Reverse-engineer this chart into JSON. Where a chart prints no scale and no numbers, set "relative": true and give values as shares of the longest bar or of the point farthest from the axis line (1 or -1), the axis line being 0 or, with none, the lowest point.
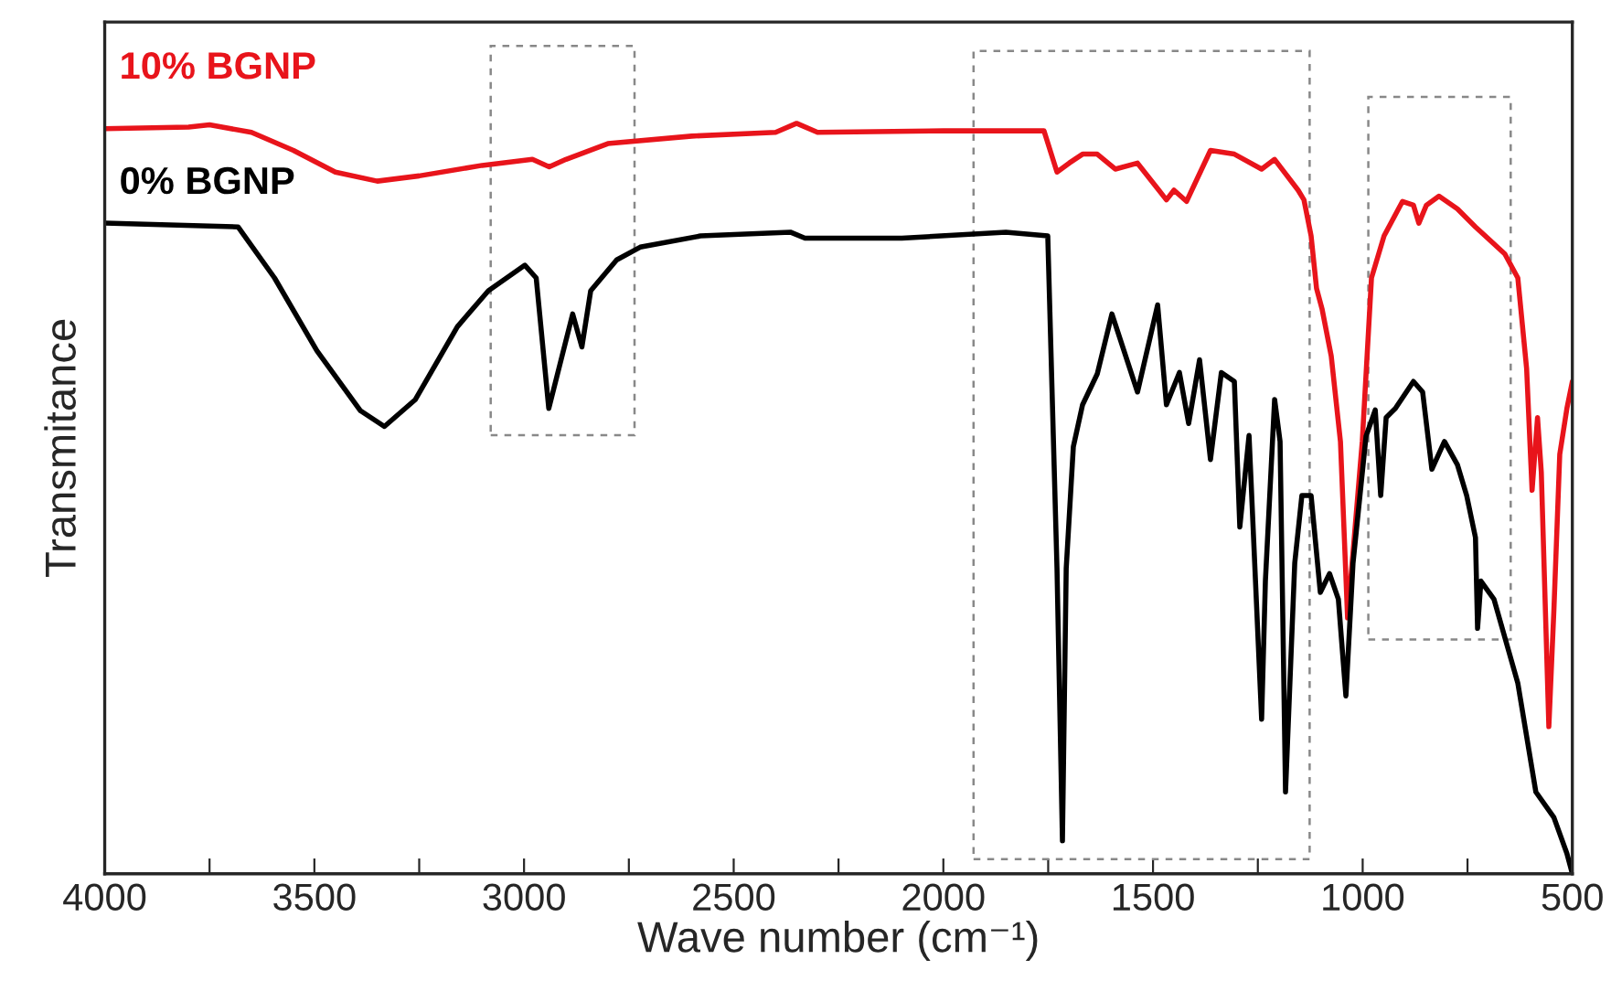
{
  "chart_data": {
    "type": "line",
    "relative": true,
    "xlabel": "Wave number (cm⁻¹)",
    "ylabel": "Transmitance",
    "xlim": [
      4000,
      500
    ],
    "xticks": [
      4000,
      {
        "value": 3750,
        "label": null
      },
      3500,
      {
        "value": 3250,
        "label": null
      },
      3000,
      {
        "value": 2750,
        "label": null
      },
      2500,
      {
        "value": 2250,
        "label": null
      },
      2000,
      {
        "value": 1750,
        "label": null
      },
      1500,
      {
        "value": 1250,
        "label": null
      },
      1000,
      {
        "value": 750,
        "label": null
      },
      500
    ],
    "legend": false,
    "grid": false,
    "marker": "none",
    "line_style": "solid",
    "series": [
      {
        "name": "10% BGNP",
        "color": "#e8141b",
        "x": [
          4000,
          3800,
          3750,
          3650,
          3550,
          3450,
          3350,
          3250,
          3100,
          2980,
          2940,
          2900,
          2800,
          2600,
          2400,
          2350,
          2300,
          2000,
          1760,
          1729,
          1700,
          1668,
          1633,
          1590,
          1537,
          1468,
          1450,
          1420,
          1363,
          1306,
          1241,
          1210,
          1154,
          1140,
          1123,
          1110,
          1097,
          1075,
          1053,
          1036,
          1001,
          979,
          949,
          905,
          879,
          866,
          848,
          818,
          774,
          731,
          661,
          630,
          609,
          596,
          583,
          574,
          556,
          544,
          530,
          513,
          500
        ],
        "values": [
          0.993,
          0.995,
          0.998,
          0.988,
          0.964,
          0.935,
          0.923,
          0.93,
          0.944,
          0.952,
          0.942,
          0.952,
          0.973,
          0.983,
          0.988,
          1.0,
          0.988,
          0.99,
          0.99,
          0.935,
          0.947,
          0.959,
          0.959,
          0.939,
          0.947,
          0.898,
          0.911,
          0.896,
          0.964,
          0.959,
          0.939,
          0.952,
          0.911,
          0.898,
          0.85,
          0.78,
          0.753,
          0.69,
          0.576,
          0.341,
          0.576,
          0.794,
          0.85,
          0.896,
          0.891,
          0.867,
          0.891,
          0.903,
          0.886,
          0.862,
          0.826,
          0.794,
          0.673,
          0.511,
          0.608,
          0.535,
          0.196,
          0.351,
          0.559,
          0.62,
          0.656
        ]
      },
      {
        "name": "0% BGNP",
        "color": "#000000",
        "x": [
          4000,
          3682,
          3595,
          3494,
          3390,
          3333,
          3259,
          3159,
          3085,
          2998,
          2971,
          2941,
          2884,
          2862,
          2841,
          2779,
          2723,
          2579,
          2365,
          2330,
          2099,
          1851,
          1751,
          1729,
          1716,
          1707,
          1690,
          1668,
          1633,
          1598,
          1537,
          1489,
          1468,
          1437,
          1415,
          1389,
          1363,
          1337,
          1306,
          1293,
          1271,
          1241,
          1232,
          1210,
          1197,
          1184,
          1162,
          1145,
          1123,
          1101,
          1079,
          1058,
          1040,
          1023,
          992,
          970,
          957,
          944,
          922,
          879,
          857,
          835,
          805,
          774,
          752,
          731,
          726,
          718,
          687,
          630,
          587,
          544,
          513,
          500
        ],
        "values": [
          0.867,
          0.862,
          0.794,
          0.697,
          0.617,
          0.596,
          0.632,
          0.729,
          0.777,
          0.811,
          0.794,
          0.62,
          0.746,
          0.702,
          0.777,
          0.818,
          0.835,
          0.85,
          0.855,
          0.847,
          0.847,
          0.855,
          0.85,
          0.407,
          0.044,
          0.407,
          0.569,
          0.625,
          0.666,
          0.746,
          0.642,
          0.758,
          0.625,
          0.668,
          0.6,
          0.685,
          0.552,
          0.668,
          0.656,
          0.462,
          0.584,
          0.206,
          0.39,
          0.632,
          0.576,
          0.109,
          0.414,
          0.504,
          0.504,
          0.375,
          0.4,
          0.366,
          0.237,
          0.414,
          0.583,
          0.618,
          0.504,
          0.608,
          0.62,
          0.656,
          0.642,
          0.539,
          0.576,
          0.545,
          0.504,
          0.448,
          0.327,
          0.39,
          0.366,
          0.254,
          0.109,
          0.075,
          0.027,
          0.0
        ]
      }
    ]
  }
}
